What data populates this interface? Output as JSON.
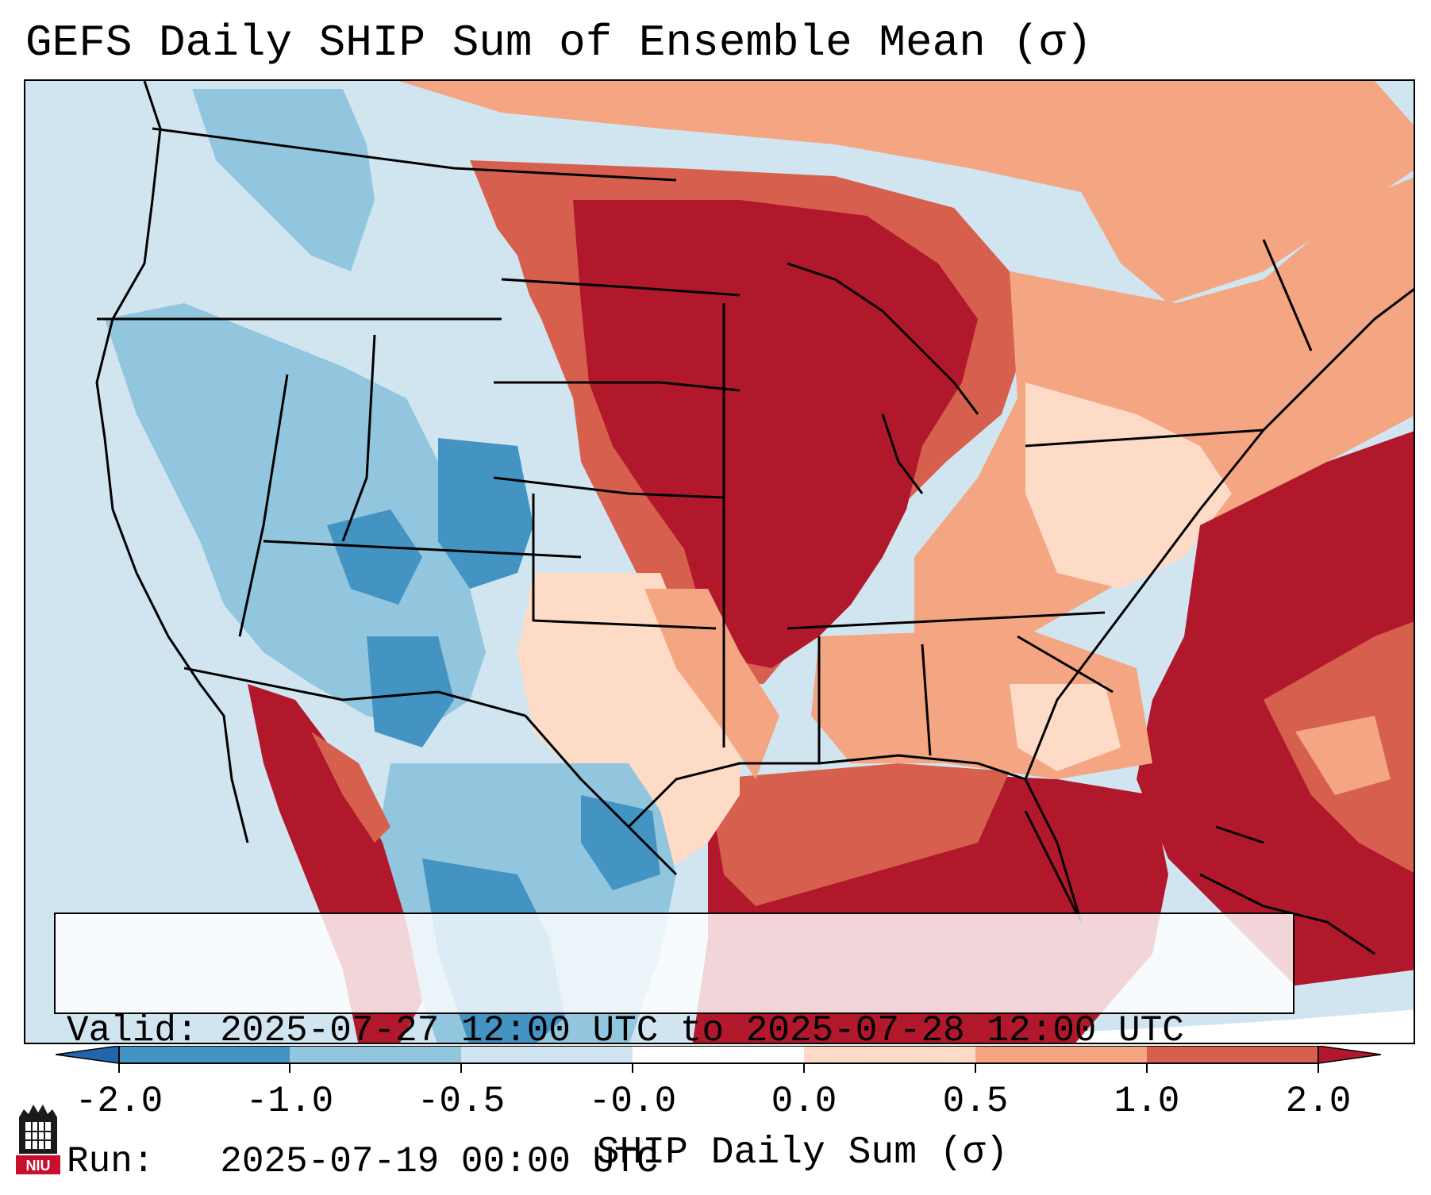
{
  "title": "GEFS Daily SHIP Sum of Ensemble Mean (σ)",
  "info": {
    "valid_line": "Valid: 2025-07-27 12:00 UTC to 2025-07-28 12:00 UTC",
    "run_line": "Run:   2025-07-19 00:00 UTC"
  },
  "colorbar": {
    "label": "SHIP Daily Sum (σ)",
    "ticks": [
      "-2.0",
      "-1.0",
      "-0.5",
      "-0.0",
      "0.0",
      "0.5",
      "1.0",
      "2.0"
    ],
    "colors": [
      "#4393c3",
      "#92c5de",
      "#d1e5f0",
      "#ffffff",
      "#fddbc7",
      "#f4a582",
      "#d6604d",
      "#b2182b"
    ],
    "extend_low_color": "#2166ac",
    "extend_high_color": "#b2182b"
  },
  "logo": {
    "text": "NIU",
    "icon": "niu-logo-icon"
  },
  "map": {
    "region": "Contiguous United States, northern Mexico and the Gulf of Mexico",
    "ocean_color": "#d1e5f0"
  }
}
